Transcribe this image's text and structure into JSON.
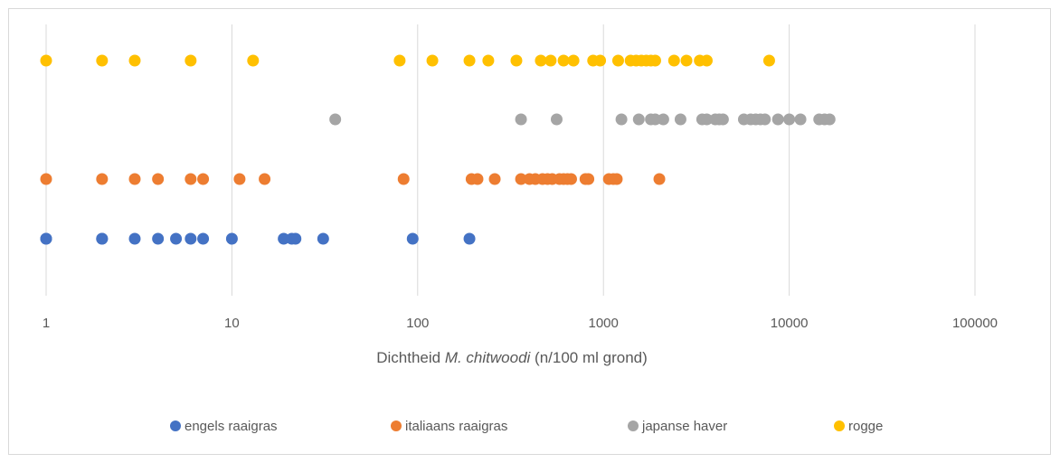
{
  "chart_data": {
    "type": "scatter",
    "x_scale": "log",
    "xlim": [
      1,
      100000
    ],
    "x_ticks": [
      "1",
      "10",
      "100",
      "1000",
      "10000",
      "100000"
    ],
    "xlabel": {
      "prefix": "Dichtheid ",
      "species": "M. chitwoodi",
      "suffix": " (n/100 ml grond)"
    },
    "grid": "vertical",
    "legend_position": "bottom",
    "series": [
      {
        "name": "engels raaigras",
        "color": "#4472C4",
        "x": [
          1,
          1,
          2,
          2,
          3,
          4,
          5,
          6,
          7,
          10,
          19,
          21,
          22,
          31,
          94,
          190
        ]
      },
      {
        "name": "italiaans raaigras",
        "color": "#ED7D31",
        "x": [
          1,
          2,
          3,
          4,
          6,
          7,
          11,
          15,
          84,
          195,
          210,
          260,
          360,
          400,
          430,
          470,
          500,
          530,
          580,
          610,
          640,
          670,
          800,
          830,
          1070,
          1130,
          1180,
          2000
        ]
      },
      {
        "name": "japanse haver",
        "color": "#A5A5A5",
        "x": [
          36,
          360,
          560,
          1250,
          1550,
          1800,
          1900,
          2100,
          2600,
          3400,
          3600,
          4000,
          4200,
          4400,
          5700,
          6200,
          6600,
          7000,
          7400,
          8700,
          10000,
          11500,
          14500,
          15500,
          16500
        ]
      },
      {
        "name": "rogge",
        "color": "#FFC000",
        "x": [
          1,
          2,
          3,
          6,
          13,
          80,
          120,
          190,
          240,
          340,
          460,
          520,
          610,
          690,
          880,
          960,
          1200,
          1400,
          1500,
          1600,
          1700,
          1800,
          1900,
          2400,
          2800,
          3300,
          3600,
          7800
        ]
      }
    ]
  }
}
